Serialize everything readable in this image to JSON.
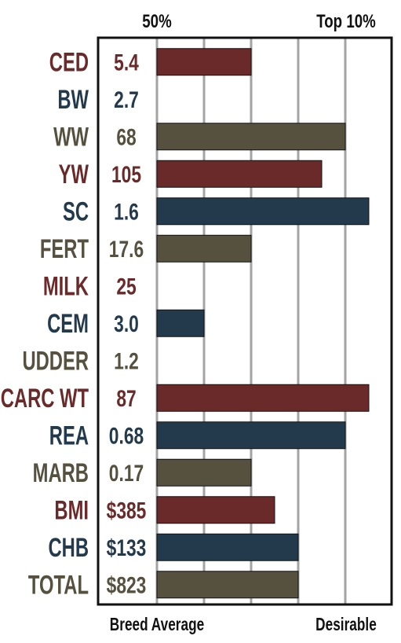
{
  "chart_data": {
    "type": "bar",
    "orientation": "horizontal",
    "top_labels": {
      "mid": "50%",
      "right": "Top 10%"
    },
    "bottom_labels": {
      "left": "Breed Average",
      "right": "Desirable"
    },
    "rows": [
      {
        "trait": "CED",
        "value_label": "5.4",
        "bar": 2,
        "color": "#6b2a2a"
      },
      {
        "trait": "BW",
        "value_label": "2.7",
        "bar": 0,
        "color": "#233a4c"
      },
      {
        "trait": "WW",
        "value_label": "68",
        "bar": 4,
        "color": "#56503f"
      },
      {
        "trait": "YW",
        "value_label": "105",
        "bar": 3.5,
        "color": "#6b2a2a"
      },
      {
        "trait": "SC",
        "value_label": "1.6",
        "bar": 4.5,
        "color": "#233a4c"
      },
      {
        "trait": "FERT",
        "value_label": "17.6",
        "bar": 2,
        "color": "#56503f"
      },
      {
        "trait": "MILK",
        "value_label": "25",
        "bar": 0,
        "color": "#6b2a2a"
      },
      {
        "trait": "CEM",
        "value_label": "3.0",
        "bar": 1,
        "color": "#233a4c"
      },
      {
        "trait": "UDDER",
        "value_label": "1.2",
        "bar": 0,
        "color": "#56503f"
      },
      {
        "trait": "CARC WT",
        "value_label": "87",
        "bar": 4.5,
        "color": "#6b2a2a"
      },
      {
        "trait": "REA",
        "value_label": "0.68",
        "bar": 4,
        "color": "#233a4c"
      },
      {
        "trait": "MARB",
        "value_label": "0.17",
        "bar": 2,
        "color": "#56503f"
      },
      {
        "trait": "BMI",
        "value_label": "$385",
        "bar": 2.5,
        "color": "#6b2a2a"
      },
      {
        "trait": "CHB",
        "value_label": "$133",
        "bar": 3,
        "color": "#233a4c"
      },
      {
        "trait": "TOTAL",
        "value_label": "$823",
        "bar": 3,
        "color": "#56503f"
      }
    ],
    "scale": {
      "min": 0,
      "max": 5,
      "gridlines": [
        0,
        1,
        2,
        3,
        4
      ]
    },
    "grid": true
  }
}
